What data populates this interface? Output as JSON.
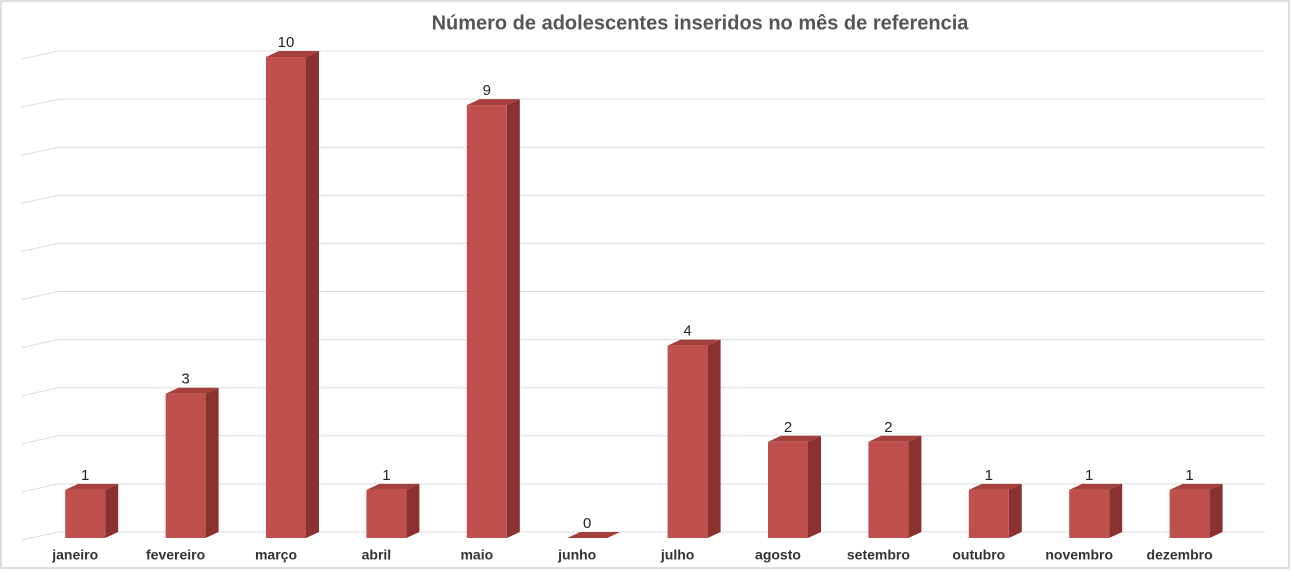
{
  "chart_data": {
    "type": "bar",
    "title": "Número de adolescentes inseridos no mês de referencia",
    "categories": [
      "janeiro",
      "fevereiro",
      "março",
      "abril",
      "maio",
      "junho",
      "julho",
      "agosto",
      "setembro",
      "outubro",
      "novembro",
      "dezembro"
    ],
    "values": [
      1,
      3,
      10,
      1,
      9,
      0,
      4,
      2,
      2,
      1,
      1,
      1
    ],
    "color": "#c0504d",
    "ylim": [
      0,
      10
    ],
    "yticks": [
      0,
      1,
      2,
      3,
      4,
      5,
      6,
      7,
      8,
      9,
      10
    ],
    "grid": true
  }
}
